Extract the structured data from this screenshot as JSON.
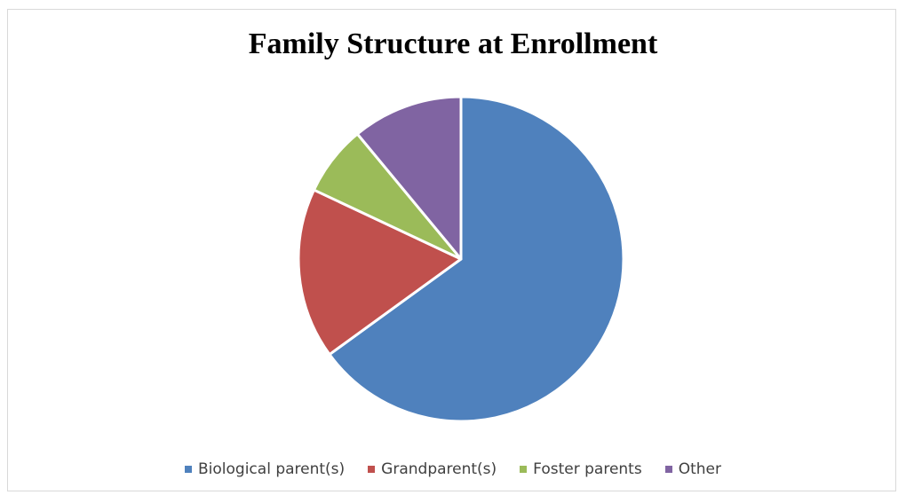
{
  "chart_data": {
    "type": "pie",
    "title": "Family Structure at Enrollment",
    "categories": [
      "Biological parent(s)",
      "Grandparent(s)",
      "Foster parents",
      "Other"
    ],
    "values": [
      65,
      17,
      7,
      11
    ],
    "colors": [
      "#4f81bd",
      "#c0504d",
      "#9bbb59",
      "#8064a2"
    ],
    "legend_position": "bottom",
    "start_angle": "12 o'clock",
    "direction": "clockwise"
  }
}
